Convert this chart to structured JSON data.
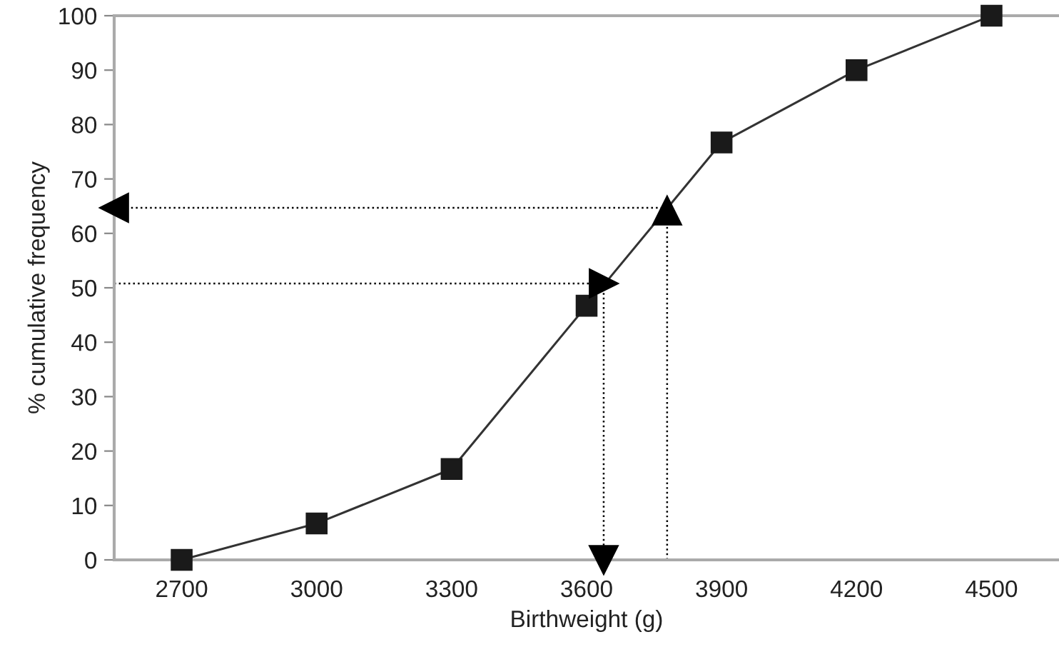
{
  "chart_data": {
    "type": "line",
    "xlabel": "Birthweight (g)",
    "ylabel": "% cumulative frequency",
    "xlim": [
      2550,
      4650
    ],
    "xticks": [
      2700,
      3000,
      3300,
      3600,
      3900,
      4200,
      4500
    ],
    "ylim": [
      0,
      100
    ],
    "yticks": [
      0,
      10,
      20,
      30,
      40,
      50,
      60,
      70,
      80,
      90,
      100
    ],
    "grid": false,
    "legend": false,
    "marker": "square",
    "line_style": "solid",
    "series": [
      {
        "color": "#333333",
        "x": [
          2700,
          3000,
          3300,
          3600,
          3900,
          4200,
          4500
        ],
        "values": [
          0,
          6.7,
          16.7,
          46.7,
          76.7,
          90,
          100
        ]
      },
      {
        "color": "#000000",
        "marker": "triangle",
        "line_style": "dotted",
        "x": [
          2550,
          3638
        ],
        "values": [
          50.8,
          50.8
        ]
      },
      {
        "color": "#000000",
        "marker": "triangle",
        "line_style": "dotted",
        "x": [
          3638,
          3638
        ],
        "values": [
          50.8,
          0
        ]
      },
      {
        "color": "#000000",
        "marker": "triangle",
        "line_style": "dotted",
        "x": [
          3779,
          3779
        ],
        "values": [
          0,
          64.2
        ]
      },
      {
        "color": "#000000",
        "marker": "triangle",
        "line_style": "dotted",
        "x": [
          3779,
          2550
        ],
        "values": [
          64.7,
          64.7
        ]
      }
    ]
  }
}
